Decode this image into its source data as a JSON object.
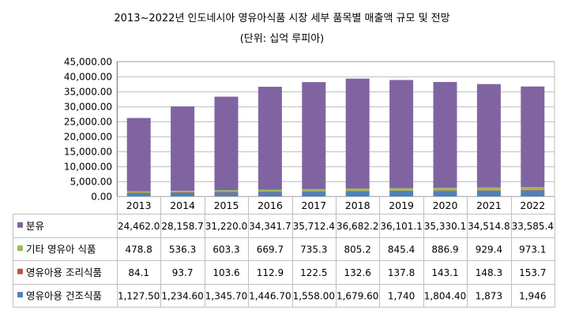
{
  "chart_data": {
    "type": "bar",
    "stacked": true,
    "title": "2013~2022년 인도네시아 영유아식품 시장 세부 품목별 매출액 규모 및 전망",
    "subtitle": "(단위: 십억 루피아)",
    "categories": [
      "2013",
      "2014",
      "2015",
      "2016",
      "2017",
      "2018",
      "2019",
      "2020",
      "2021",
      "2022"
    ],
    "ylim": [
      0,
      45000
    ],
    "yticks": [
      0,
      5000,
      10000,
      15000,
      20000,
      25000,
      30000,
      35000,
      40000,
      45000
    ],
    "ytick_labels": [
      "0.00",
      "5,000.00",
      "10,000.00",
      "15,000.00",
      "20,000.00",
      "25,000.00",
      "30,000.00",
      "35,000.00",
      "40,000.00",
      "45,000.00"
    ],
    "grid": true,
    "series": [
      {
        "name": "영유아용 건조식품",
        "color": "#4f81bd",
        "values": [
          1127.5,
          1234.6,
          1345.7,
          1446.7,
          1558.0,
          1679.6,
          1740,
          1804.4,
          1873,
          1946
        ],
        "labels": [
          "1,127.50",
          "1,234.60",
          "1,345.70",
          "1,446.70",
          "1,558.00",
          "1,679.60",
          "1,740",
          "1,804.40",
          "1,873",
          "1,946"
        ]
      },
      {
        "name": "영유아용 조리식품",
        "color": "#c0504d",
        "values": [
          84.1,
          93.7,
          103.6,
          112.9,
          122.5,
          132.6,
          137.8,
          143.1,
          148.3,
          153.7
        ],
        "labels": [
          "84.1",
          "93.7",
          "103.6",
          "112.9",
          "122.5",
          "132.6",
          "137.8",
          "143.1",
          "148.3",
          "153.7"
        ]
      },
      {
        "name": "기타 영유아 식품",
        "color": "#9bbb59",
        "values": [
          478.8,
          536.3,
          603.3,
          669.7,
          735.3,
          805.2,
          845.4,
          886.9,
          929.4,
          973.1
        ],
        "labels": [
          "478.8",
          "536.3",
          "603.3",
          "669.7",
          "735.3",
          "805.2",
          "845.4",
          "886.9",
          "929.4",
          "973.1"
        ]
      },
      {
        "name": "분유",
        "color": "#8064a2",
        "values": [
          24462.0,
          28158.7,
          31220.0,
          34341.7,
          35712.4,
          36682.2,
          36101.1,
          35330.1,
          34514.8,
          33585.4
        ],
        "labels": [
          "24,462.0",
          "28,158.7",
          "31,220.0",
          "34,341.7",
          "35,712.4",
          "36,682.2",
          "36,101.1",
          "35,330.1",
          "34,514.8",
          "33,585.4"
        ]
      }
    ],
    "table_row_order": [
      "분유",
      "기타 영유아 식품",
      "영유아용 조리식품",
      "영유아용 건조식품"
    ]
  }
}
